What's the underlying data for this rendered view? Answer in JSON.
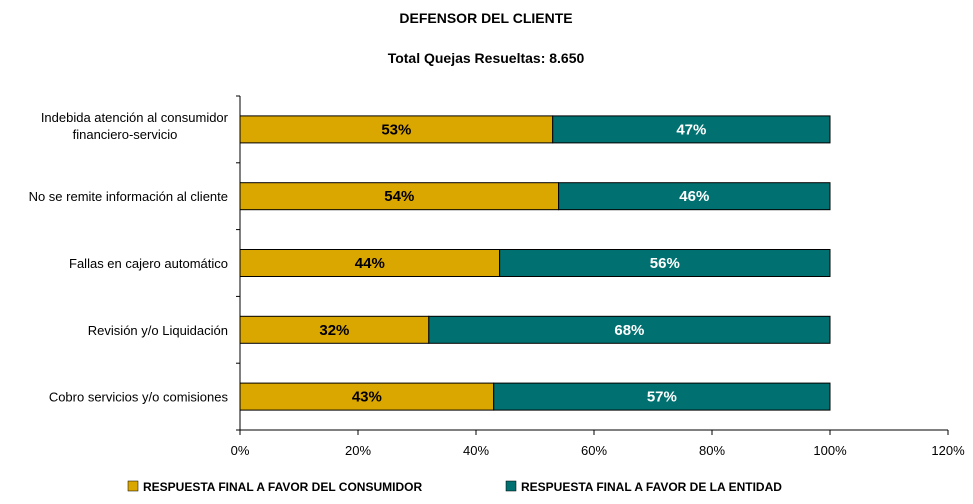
{
  "chart_data": {
    "type": "bar",
    "orientation": "horizontal",
    "stacked": true,
    "title": "DEFENSOR DEL CLIENTE",
    "subtitle": "Total Quejas Resueltas: 8.650",
    "categories": [
      [
        "Indebida atención al consumidor",
        "financiero-servicio"
      ],
      [
        "No se remite información al cliente"
      ],
      [
        "Fallas en cajero automático"
      ],
      [
        "Revisión y/o Liquidación"
      ],
      [
        "Cobro servicios y/o comisiones"
      ]
    ],
    "series": [
      {
        "name": "RESPUESTA FINAL A FAVOR DEL CONSUMIDOR",
        "color": "#DAA600",
        "label_color": "#000000",
        "values": [
          53,
          54,
          44,
          32,
          43
        ],
        "labels": [
          "53%",
          "54%",
          "44%",
          "32%",
          "43%"
        ]
      },
      {
        "name": "RESPUESTA FINAL A FAVOR DE LA ENTIDAD",
        "color": "#007070",
        "label_color": "#ffffff",
        "values": [
          47,
          46,
          56,
          68,
          57
        ],
        "labels": [
          "47%",
          "46%",
          "56%",
          "68%",
          "57%"
        ]
      }
    ],
    "xlim": [
      0,
      120
    ],
    "xticks": [
      0,
      20,
      40,
      60,
      80,
      100,
      120
    ],
    "xtick_labels": [
      "0%",
      "20%",
      "40%",
      "60%",
      "80%",
      "100%",
      "120%"
    ],
    "grid": false,
    "legend_position": "bottom"
  }
}
